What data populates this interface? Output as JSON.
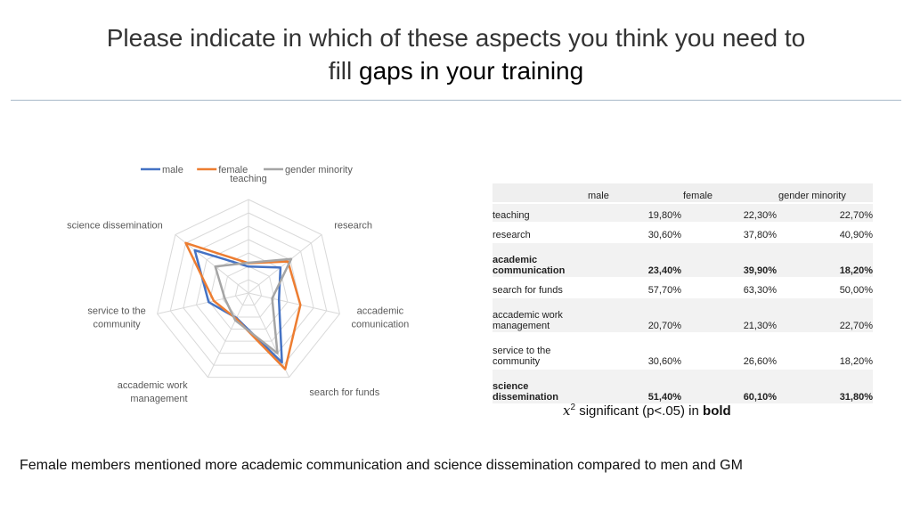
{
  "title": {
    "line1": "Please indicate in which of these aspects you think you need to",
    "line2_prefix": "fill ",
    "line2_emph": "gaps in your training"
  },
  "chart_data": {
    "type": "radar",
    "axes": [
      "teaching",
      "research",
      "accademic comunication",
      "search for funds",
      "accademic work management",
      "service to the community",
      "science dissemination"
    ],
    "axis_label_lines": [
      [
        "teaching"
      ],
      [
        "research"
      ],
      [
        "accademic",
        "comunication"
      ],
      [
        "search for funds"
      ],
      [
        "accademic work",
        "management"
      ],
      [
        "service to the",
        "community"
      ],
      [
        "science dissemination"
      ]
    ],
    "rlim": [
      0,
      70
    ],
    "series": [
      {
        "name": "male",
        "color": "#4472c4",
        "values": [
          19.8,
          30.6,
          23.4,
          57.7,
          20.7,
          30.6,
          51.4
        ]
      },
      {
        "name": "female",
        "color": "#ed7d31",
        "values": [
          22.3,
          37.8,
          39.9,
          63.3,
          21.3,
          26.6,
          60.1
        ]
      },
      {
        "name": "gender minority",
        "color": "#a5a5a5",
        "values": [
          22.7,
          40.9,
          18.2,
          50.0,
          22.7,
          18.2,
          31.8
        ]
      }
    ],
    "legend_position": "top"
  },
  "table": {
    "headers": [
      "",
      "male",
      "female",
      "gender minority"
    ],
    "rows": [
      {
        "label": "teaching",
        "values": [
          "19,80%",
          "22,30%",
          "22,70%"
        ],
        "bold": false
      },
      {
        "label": "research",
        "values": [
          "30,60%",
          "37,80%",
          "40,90%"
        ],
        "bold": false
      },
      {
        "label": "academic communication",
        "values": [
          "23,40%",
          "39,90%",
          "18,20%"
        ],
        "bold": true
      },
      {
        "label": "search for funds",
        "values": [
          "57,70%",
          "63,30%",
          "50,00%"
        ],
        "bold": false
      },
      {
        "label": "accademic work management",
        "values": [
          "20,70%",
          "21,30%",
          "22,70%"
        ],
        "bold": false
      },
      {
        "label": "service to the community",
        "values": [
          "30,60%",
          "26,60%",
          "18,20%"
        ],
        "bold": false
      },
      {
        "label": "science dissemination",
        "values": [
          "51,40%",
          "60,10%",
          "31,80%"
        ],
        "bold": true
      }
    ]
  },
  "note": {
    "symbol": "x",
    "superscript": "2",
    "text": " significant (p<.05) in ",
    "bold": "bold"
  },
  "caption": "Female members mentioned more academic communication and science dissemination compared to men and GM"
}
